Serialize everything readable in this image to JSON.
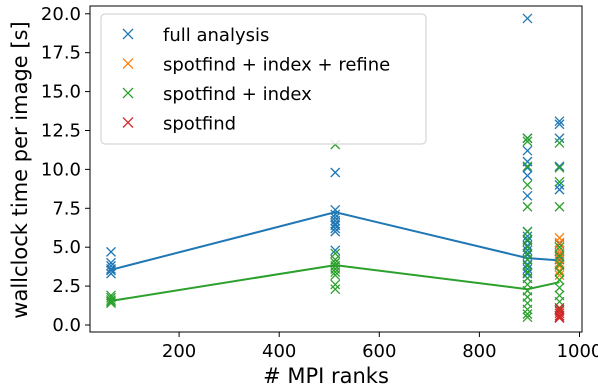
{
  "chart_data": {
    "type": "scatter",
    "xlabel": "# MPI ranks",
    "ylabel": "wallclock time per image [s]",
    "xlim": [
      22,
      1005
    ],
    "ylim": [
      -0.45,
      20.5
    ],
    "xticks": [
      200,
      400,
      600,
      800,
      1000
    ],
    "yticks": [
      0.0,
      2.5,
      5.0,
      7.5,
      10.0,
      12.5,
      15.0,
      17.5,
      20.0
    ],
    "grid": false,
    "legend_position": "top-left",
    "series": [
      {
        "name": "full analysis",
        "color": "#1f77b4",
        "mean_line": [
          [
            64,
            3.55
          ],
          [
            512,
            7.25
          ],
          [
            896,
            4.3
          ],
          [
            960,
            4.15
          ]
        ],
        "points": [
          [
            64,
            4.7
          ],
          [
            64,
            4.0
          ],
          [
            64,
            3.8
          ],
          [
            64,
            3.6
          ],
          [
            64,
            3.5
          ],
          [
            64,
            3.3
          ],
          [
            512,
            9.8
          ],
          [
            512,
            7.4
          ],
          [
            512,
            7.1
          ],
          [
            512,
            6.9
          ],
          [
            512,
            6.7
          ],
          [
            512,
            6.5
          ],
          [
            512,
            6.4
          ],
          [
            512,
            6.2
          ],
          [
            512,
            6.0
          ],
          [
            512,
            4.8
          ],
          [
            896,
            19.7
          ],
          [
            896,
            12.0
          ],
          [
            896,
            11.2
          ],
          [
            896,
            10.5
          ],
          [
            896,
            10.1
          ],
          [
            896,
            9.6
          ],
          [
            896,
            8.3
          ],
          [
            896,
            6.0
          ],
          [
            896,
            5.7
          ],
          [
            896,
            5.4
          ],
          [
            896,
            5.1
          ],
          [
            896,
            4.8
          ],
          [
            896,
            4.5
          ],
          [
            896,
            4.2
          ],
          [
            896,
            3.9
          ],
          [
            896,
            3.6
          ],
          [
            896,
            3.3
          ],
          [
            896,
            3.0
          ],
          [
            960,
            13.1
          ],
          [
            960,
            12.9
          ],
          [
            960,
            12.0
          ],
          [
            960,
            10.2
          ],
          [
            960,
            9.0
          ],
          [
            960,
            8.7
          ],
          [
            960,
            5.2
          ],
          [
            960,
            4.8
          ],
          [
            960,
            4.5
          ],
          [
            960,
            4.2
          ],
          [
            960,
            3.9
          ]
        ]
      },
      {
        "name": "spotfind + index + refine",
        "color": "#ff7f0e",
        "mean_line": [],
        "points": [
          [
            960,
            5.6
          ],
          [
            960,
            5.3
          ],
          [
            960,
            5.0
          ],
          [
            960,
            4.8
          ],
          [
            960,
            4.6
          ],
          [
            960,
            4.3
          ],
          [
            960,
            4.0
          ],
          [
            960,
            3.8
          ],
          [
            960,
            3.5
          ],
          [
            960,
            3.2
          ]
        ]
      },
      {
        "name": "spotfind + index",
        "color": "#2ca02c",
        "mean_line": [
          [
            64,
            1.55
          ],
          [
            512,
            3.85
          ],
          [
            896,
            2.3
          ],
          [
            960,
            2.75
          ]
        ],
        "points": [
          [
            64,
            1.9
          ],
          [
            64,
            1.75
          ],
          [
            64,
            1.6
          ],
          [
            64,
            1.5
          ],
          [
            64,
            1.4
          ],
          [
            512,
            11.6
          ],
          [
            512,
            4.6
          ],
          [
            512,
            4.2
          ],
          [
            512,
            4.0
          ],
          [
            512,
            3.8
          ],
          [
            512,
            3.6
          ],
          [
            512,
            3.4
          ],
          [
            512,
            3.2
          ],
          [
            512,
            2.6
          ],
          [
            512,
            2.3
          ],
          [
            896,
            12.0
          ],
          [
            896,
            11.8
          ],
          [
            896,
            10.2
          ],
          [
            896,
            9.0
          ],
          [
            896,
            7.6
          ],
          [
            896,
            6.0
          ],
          [
            896,
            5.5
          ],
          [
            896,
            5.0
          ],
          [
            896,
            4.6
          ],
          [
            896,
            4.2
          ],
          [
            896,
            3.8
          ],
          [
            896,
            3.4
          ],
          [
            896,
            3.0
          ],
          [
            896,
            2.6
          ],
          [
            896,
            2.2
          ],
          [
            896,
            1.8
          ],
          [
            896,
            1.4
          ],
          [
            896,
            1.0
          ],
          [
            896,
            0.7
          ],
          [
            896,
            0.5
          ],
          [
            960,
            11.7
          ],
          [
            960,
            10.1
          ],
          [
            960,
            9.2
          ],
          [
            960,
            7.6
          ],
          [
            960,
            5.0
          ],
          [
            960,
            4.4
          ],
          [
            960,
            3.9
          ],
          [
            960,
            3.4
          ],
          [
            960,
            2.9
          ],
          [
            960,
            2.4
          ],
          [
            960,
            1.9
          ],
          [
            960,
            1.5
          ],
          [
            960,
            1.0
          ]
        ]
      },
      {
        "name": "spotfind",
        "color": "#d62728",
        "mean_line": [],
        "points": [
          [
            960,
            1.1
          ],
          [
            960,
            0.9
          ],
          [
            960,
            0.75
          ],
          [
            960,
            0.6
          ],
          [
            960,
            0.5
          ],
          [
            960,
            0.45
          ]
        ]
      }
    ]
  }
}
